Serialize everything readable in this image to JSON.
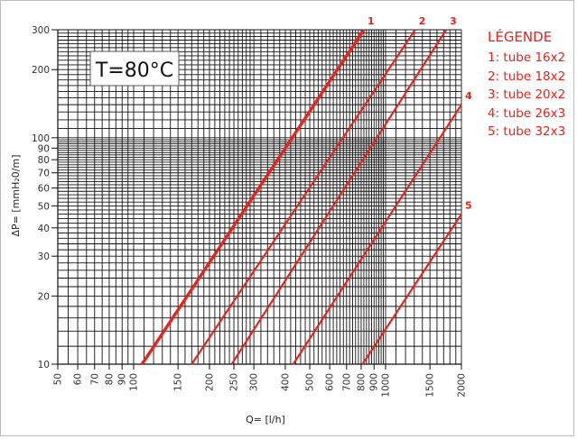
{
  "chart_data": {
    "type": "line",
    "annotation": "T=80°C",
    "xlabel": "Q= [l/h]",
    "ylabel": "ΔP= [mmH₂0/m]",
    "xscale": "log",
    "yscale": "log",
    "xlim": [
      50,
      2000
    ],
    "ylim": [
      10,
      300
    ],
    "x_ticks": [
      50,
      60,
      70,
      80,
      90,
      100,
      150,
      200,
      250,
      300,
      400,
      500,
      600,
      700,
      800,
      900,
      1000,
      1500,
      2000
    ],
    "y_ticks": [
      10,
      20,
      30,
      40,
      50,
      60,
      70,
      80,
      90,
      100,
      200,
      300
    ],
    "grid": true,
    "color": "#e8231b",
    "series": [
      {
        "name": "1",
        "x": [
          108,
          820
        ],
        "y": [
          10,
          300
        ]
      },
      {
        "name": "2",
        "x": [
          170,
          1310
        ],
        "y": [
          10,
          300
        ]
      },
      {
        "name": "3",
        "x": [
          245,
          1740
        ],
        "y": [
          10,
          300
        ]
      },
      {
        "name": "4",
        "x": [
          430,
          2000
        ],
        "y": [
          10,
          140
        ]
      },
      {
        "name": "5",
        "x": [
          810,
          2000
        ],
        "y": [
          10,
          46
        ]
      }
    ],
    "legend": {
      "title": "LÉGENDE",
      "items": [
        "1: tube 16x2",
        "2: tube 18x2",
        "3: tube 20x2",
        "4: tube 26x3",
        "5: tube 32x3"
      ]
    }
  }
}
